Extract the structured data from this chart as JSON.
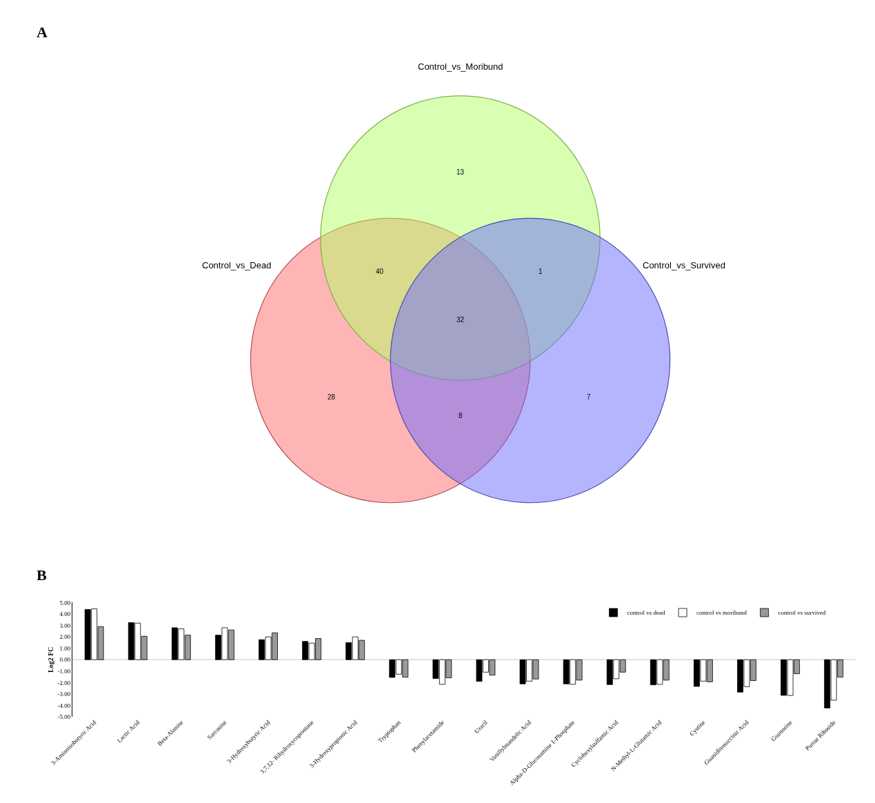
{
  "chart_data": [
    {
      "type": "other",
      "title": "A",
      "annotations": [
        "Control_vs_Dead",
        "Control_vs_Moribund",
        "Control_vs_Survived",
        "13",
        "40",
        "1",
        "32",
        "28",
        "8",
        "7"
      ]
    },
    {
      "type": "bar",
      "title": "B",
      "ylabel": "Log2 FC",
      "categories": [
        "3-Aminoisobutyric Acid",
        "Lactic Acid",
        "Beta-Alanine",
        "Sarcosine",
        "3-Hydroxybutyric Acid",
        "3,7,12- Rihydroxycoprostane",
        "3-Hydroxypropionic Acid",
        "Tryptophan",
        "Phenylacetamide",
        "Uracil",
        "Vanillylmandelic Acid",
        "Alpha-D-Glucosamine 1-Phosphate",
        "Cyclohexylsulfamic Acid",
        "N-Methyl-L-Glutamic Acid",
        "Cystine",
        "Guanidinosuccinic Acid",
        "Guanosine",
        "Purine Riboside"
      ],
      "series": [
        {
          "name": "control vs dead",
          "color": "#000000",
          "values": [
            4.4,
            3.25,
            2.8,
            2.15,
            1.75,
            1.6,
            1.5,
            -1.55,
            -1.65,
            -1.9,
            -2.12,
            -2.12,
            -2.18,
            -2.2,
            -2.34,
            -2.84,
            -3.12,
            -4.23
          ]
        },
        {
          "name": "control vs moribund",
          "color": "#ffffff",
          "values": [
            4.45,
            3.2,
            2.7,
            2.8,
            2.0,
            1.45,
            2.0,
            -1.27,
            -2.16,
            -1.09,
            -1.88,
            -2.16,
            -1.67,
            -2.16,
            -1.88,
            -2.36,
            -3.13,
            -3.55
          ]
        },
        {
          "name": "control vs survived",
          "color": "#9a9a9a",
          "values": [
            2.9,
            2.05,
            2.15,
            2.6,
            2.35,
            1.85,
            1.7,
            -1.53,
            -1.59,
            -1.35,
            -1.69,
            -1.79,
            -1.09,
            -1.79,
            -1.94,
            -1.83,
            -1.23,
            -1.53
          ]
        }
      ],
      "ylim": [
        -5,
        5
      ],
      "yticks": [
        {
          "value": 5,
          "label": "5.00"
        },
        {
          "value": 4,
          "label": "4.00"
        },
        {
          "value": 3,
          "label": "3.00"
        },
        {
          "value": 2,
          "label": "2.00"
        },
        {
          "value": 1,
          "label": "1.00"
        },
        {
          "value": 0,
          "label": "0.00"
        },
        {
          "value": -1,
          "label": "-1.00"
        },
        {
          "value": -2,
          "label": "-2.00"
        },
        {
          "value": -3,
          "label": "-3.00"
        },
        {
          "value": -4,
          "label": "-4.00"
        },
        {
          "value": -5,
          "label": "-5.00"
        }
      ],
      "ref_lines": [
        {
          "axis": "y",
          "value": 0,
          "color": "#d9d9d9"
        }
      ],
      "legend": "top right"
    }
  ]
}
